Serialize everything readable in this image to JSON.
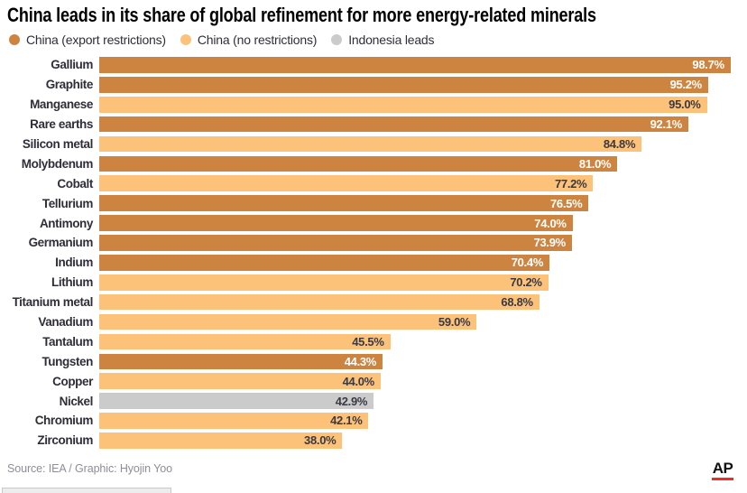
{
  "title": "China leads in its share of global refinement for more energy-related minerals",
  "legend": [
    {
      "label": "China (export restrictions)",
      "color": "#cd8440"
    },
    {
      "label": "China (no restrictions)",
      "color": "#fcc279"
    },
    {
      "label": "Indonesia leads",
      "color": "#cbcbcb"
    }
  ],
  "chart_data": {
    "type": "bar",
    "orientation": "horizontal",
    "title": "China leads in its share of global refinement for more energy-related minerals",
    "xlim": [
      0,
      100
    ],
    "grid": false,
    "legend_position": "top",
    "categories": [
      "Gallium",
      "Graphite",
      "Manganese",
      "Rare earths",
      "Silicon metal",
      "Molybdenum",
      "Cobalt",
      "Tellurium",
      "Antimony",
      "Germanium",
      "Indium",
      "Lithium",
      "Titanium metal",
      "Vanadium",
      "Tantalum",
      "Tungsten",
      "Copper",
      "Nickel",
      "Chromium",
      "Zirconium"
    ],
    "values": [
      98.7,
      95.2,
      95.0,
      92.1,
      84.8,
      81.0,
      77.2,
      76.5,
      74.0,
      73.9,
      70.4,
      70.2,
      68.8,
      59.0,
      45.5,
      44.3,
      44.0,
      42.9,
      42.1,
      38.0
    ],
    "value_labels": [
      "98.7%",
      "95.2%",
      "95.0%",
      "92.1%",
      "84.8%",
      "81.0%",
      "77.2%",
      "76.5%",
      "74.0%",
      "73.9%",
      "70.4%",
      "70.2%",
      "68.8%",
      "59.0%",
      "45.5%",
      "44.3%",
      "44.0%",
      "42.9%",
      "42.1%",
      "38.0%"
    ],
    "bar_groups": [
      "export",
      "export",
      "none",
      "export",
      "none",
      "export",
      "none",
      "export",
      "export",
      "export",
      "export",
      "none",
      "none",
      "none",
      "none",
      "export",
      "none",
      "indonesia",
      "none",
      "none"
    ],
    "group_colors": {
      "export": "#cd8440",
      "none": "#fcc279",
      "indonesia": "#cbcbcb"
    },
    "value_text_colors": {
      "export": "#ffffff",
      "none": "#3a3944",
      "indonesia": "#3a3944"
    }
  },
  "source": "Source: IEA / Graphic: Hyojin Yoo",
  "branding": {
    "logo_text": "AP",
    "underline_color": "#ee2d24"
  }
}
